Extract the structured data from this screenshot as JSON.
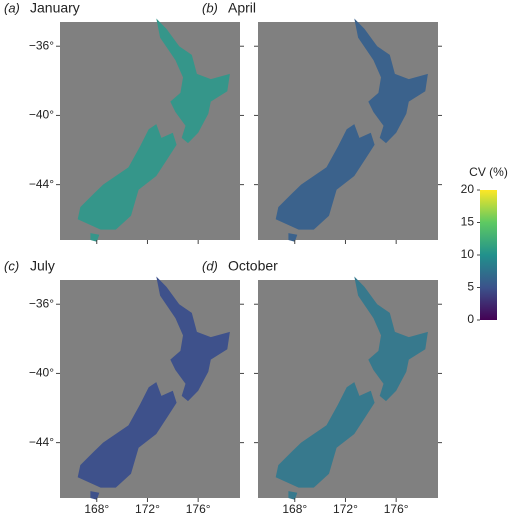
{
  "chart_data": {
    "type": "map",
    "panels": [
      {
        "label": "(a)",
        "title": "January",
        "color": "#35968a"
      },
      {
        "label": "(b)",
        "title": "April",
        "color": "#3b628c"
      },
      {
        "label": "(c)",
        "title": "July",
        "color": "#3e518b"
      },
      {
        "label": "(d)",
        "title": "October",
        "color": "#37798d"
      }
    ],
    "background": "#808080",
    "xlim": [
      165.1,
      179.3
    ],
    "ylim": [
      -47.2,
      -34.6
    ],
    "xticks": [
      {
        "value": 168,
        "label": "168°"
      },
      {
        "value": 172,
        "label": "172°"
      },
      {
        "value": 176,
        "label": "176°"
      }
    ],
    "yticks": [
      {
        "value": -36,
        "label": "−36°"
      },
      {
        "value": -40,
        "label": "−40°"
      },
      {
        "value": -44,
        "label": "−44°"
      }
    ],
    "colorbar": {
      "title": "CV (%)",
      "clim": [
        0,
        20
      ],
      "ticks": [
        0,
        5,
        10,
        15,
        20
      ],
      "colors": [
        "#440154",
        "#3b528b",
        "#21918c",
        "#5ec962",
        "#fde725"
      ]
    }
  }
}
